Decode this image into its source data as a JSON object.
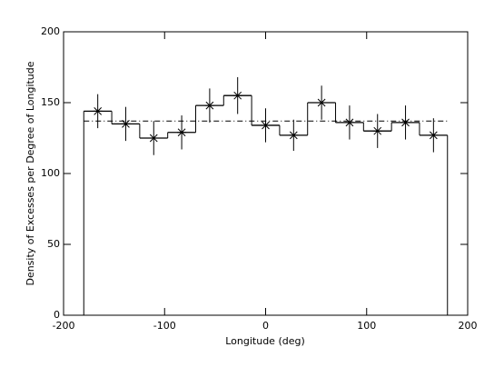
{
  "chart_data": {
    "type": "histogram",
    "xlabel": "Longitude (deg)",
    "ylabel": "Density of Excesses per Degree of Longitude",
    "bins": [
      -180,
      -152.31,
      -124.62,
      -96.92,
      -69.23,
      -41.54,
      -13.85,
      13.85,
      41.54,
      69.23,
      96.92,
      124.62,
      152.31,
      180
    ],
    "values": [
      144,
      135,
      125,
      129,
      148,
      155,
      134,
      127,
      150,
      136,
      130,
      136,
      127
    ],
    "errors": [
      12,
      12,
      12,
      12,
      12,
      13,
      12,
      11,
      12,
      12,
      12,
      12,
      12
    ],
    "mean": 137,
    "color": "#000000",
    "xlim": [
      -200,
      200
    ],
    "xticks": [
      -200,
      -100,
      0,
      100,
      200
    ],
    "ylim": [
      0,
      200
    ],
    "yticks": [
      0,
      50,
      100,
      150,
      200
    ]
  }
}
